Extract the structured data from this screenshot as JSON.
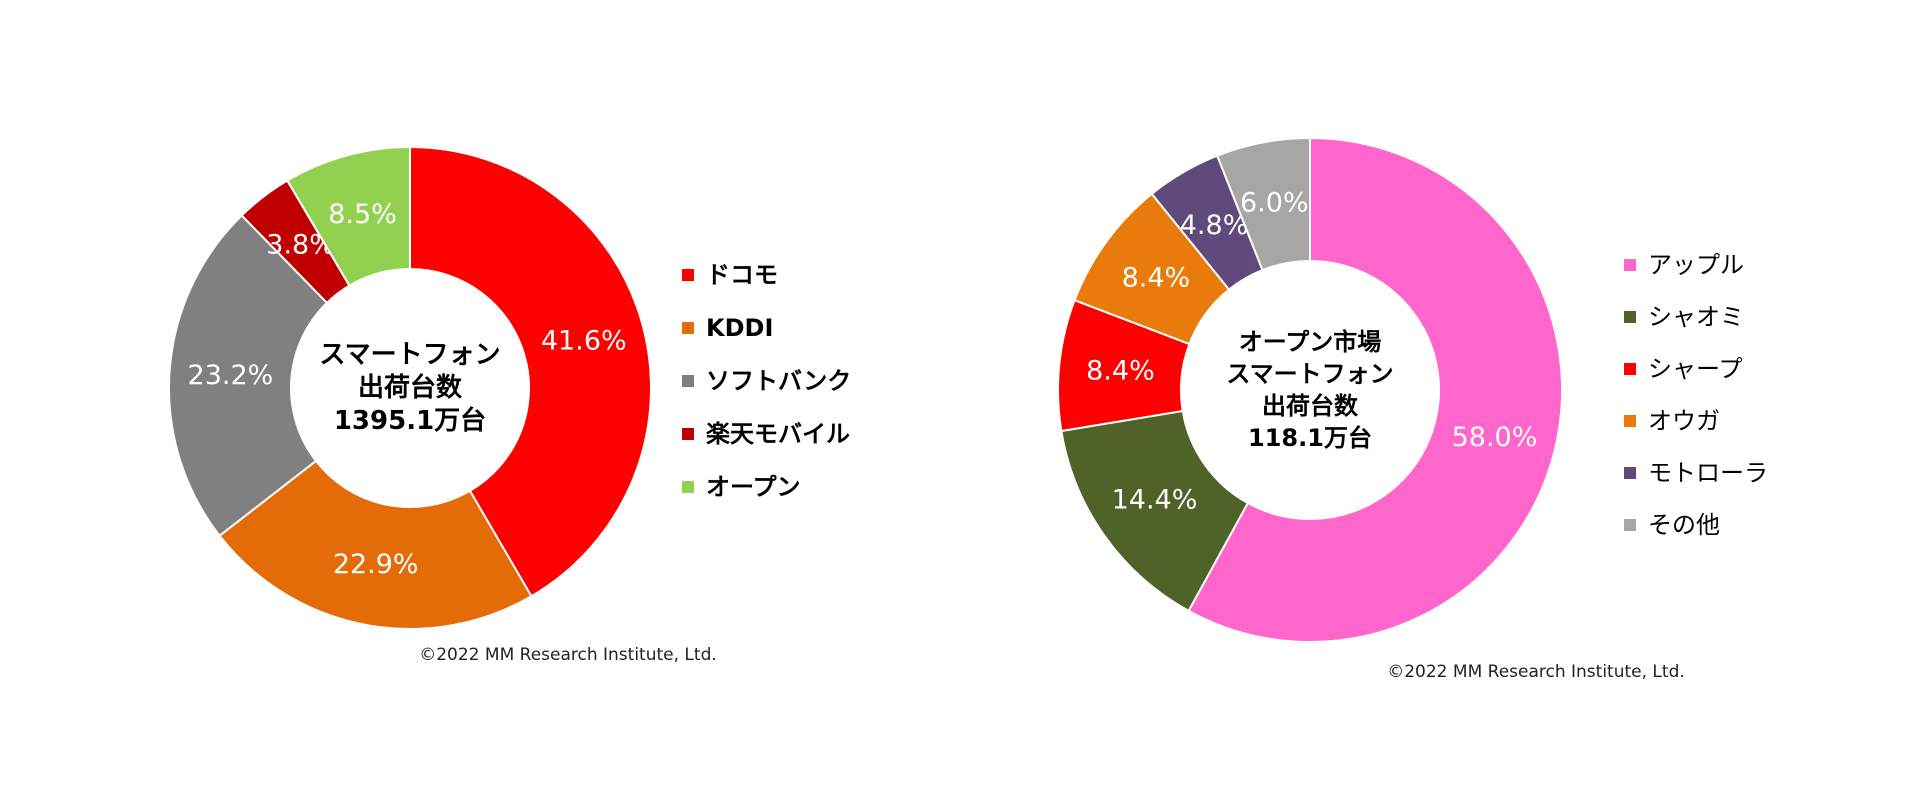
{
  "chart_data": [
    {
      "type": "pie",
      "center_label": [
        "スマートフォン",
        "出荷台数",
        "1395.1万台"
      ],
      "categories": [
        "ドコモ",
        "KDDI",
        "ソフトバンク",
        "楽天モバイル",
        "オープン"
      ],
      "values": [
        41.6,
        22.9,
        23.2,
        3.8,
        8.5
      ],
      "labels": [
        "41.6%",
        "22.9%",
        "23.2%",
        "3.8%",
        "8.5%"
      ],
      "colors": [
        "#ff0000",
        "#e36c09",
        "#808080",
        "#c00000",
        "#92d050"
      ],
      "legend_position": "right",
      "legend_bold": true,
      "copyright": "©2022 MM Research Institute, Ltd."
    },
    {
      "type": "pie",
      "center_label": [
        "オープン市場",
        "スマートフォン",
        "出荷台数",
        "118.1万台"
      ],
      "categories": [
        "アップル",
        "シャオミ",
        "シャープ",
        "オウガ",
        "モトローラ",
        "その他"
      ],
      "values": [
        58.0,
        14.4,
        8.4,
        8.4,
        4.8,
        6.0
      ],
      "labels": [
        "58.0%",
        "14.4%",
        "8.4%",
        "8.4%",
        "4.8%",
        "6.0%"
      ],
      "colors": [
        "#ff66cc",
        "#4f6228",
        "#ff0000",
        "#e87b0c",
        "#604a7b",
        "#a6a6a6"
      ],
      "legend_position": "right",
      "legend_bold": false,
      "copyright": "©2022 MM Research Institute, Ltd."
    }
  ]
}
